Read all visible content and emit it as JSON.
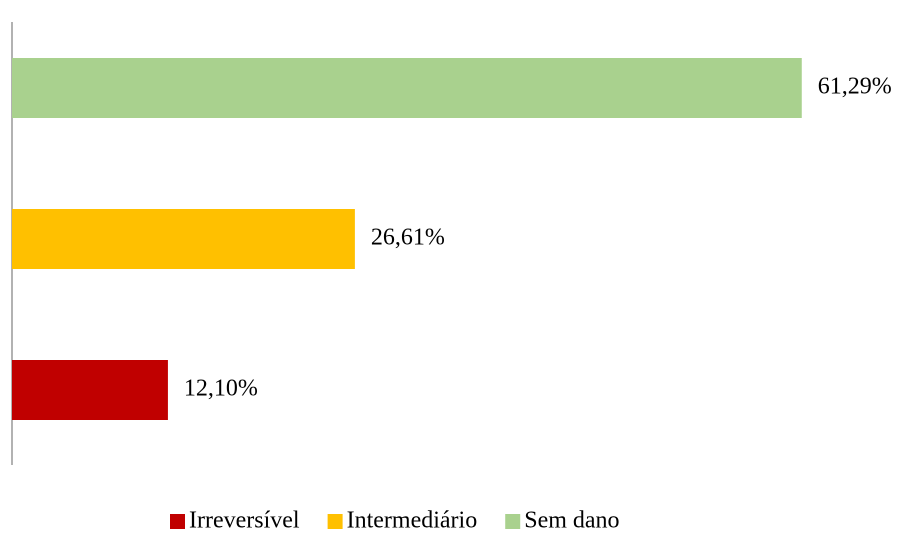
{
  "chart_data": {
    "type": "bar",
    "orientation": "horizontal",
    "categories": [
      null
    ],
    "series": [
      {
        "name": "Irreversível",
        "color": "#c00000",
        "values": [
          12.1
        ],
        "value_labels": [
          "12,10%"
        ]
      },
      {
        "name": "Intermediário",
        "color": "#ffc000",
        "values": [
          26.61
        ],
        "value_labels": [
          "26,61%"
        ]
      },
      {
        "name": "Sem dano",
        "color": "#a9d18e",
        "values": [
          61.29
        ],
        "value_labels": [
          "61,29%"
        ]
      }
    ],
    "xlim": [
      0,
      70
    ],
    "legend": "bottom"
  }
}
